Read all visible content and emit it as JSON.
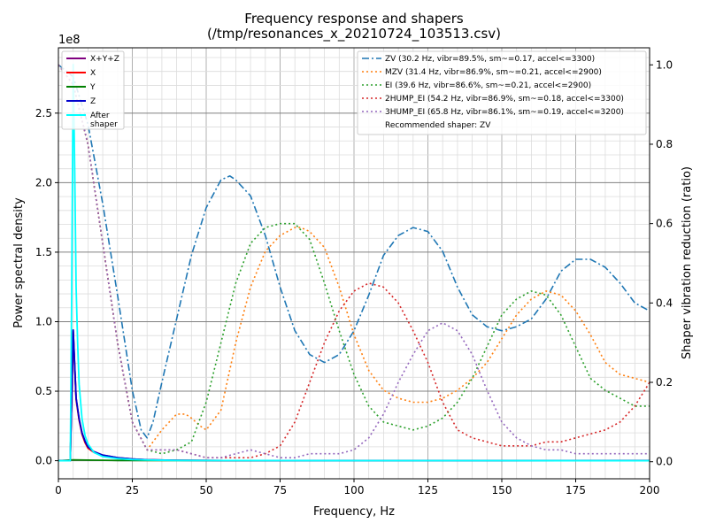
{
  "chart_data": {
    "type": "line",
    "title": "Frequency response and shapers",
    "subtitle": "(/tmp/resonances_x_20210724_103513.csv)",
    "xlabel": "Frequency, Hz",
    "ylabel_left": "Power spectral density",
    "ylabel_right": "Shaper vibration reduction (ratio)",
    "left_scale_label": "1e8",
    "xlim": [
      0,
      200
    ],
    "ylim_left": [
      -0.13,
      2.97
    ],
    "ylim_right": [
      -0.043,
      1.043
    ],
    "x_ticks": [
      0,
      25,
      50,
      75,
      100,
      125,
      150,
      175,
      200
    ],
    "x_tick_labels": [
      "0",
      "25",
      "50",
      "75",
      "100",
      "125",
      "150",
      "175",
      "200"
    ],
    "y_left_ticks": [
      0,
      0.5,
      1.0,
      1.5,
      2.0,
      2.5
    ],
    "y_left_tick_labels": [
      "0.0",
      "0.5",
      "1.0",
      "1.5",
      "2.0",
      "2.5"
    ],
    "y_right_ticks": [
      0,
      0.2,
      0.4,
      0.6,
      0.8,
      1.0
    ],
    "y_right_tick_labels": [
      "0.0",
      "0.2",
      "0.4",
      "0.6",
      "0.8",
      "1.0"
    ],
    "grid": "major and minor",
    "legend_left_position": "top-left",
    "legend_right_position": "top-right",
    "psd_series": [
      {
        "name": "X+Y+Z",
        "color": "#800080",
        "x": [
          0,
          4,
          5,
          6,
          7,
          8,
          9,
          10,
          12,
          15,
          20,
          25,
          30,
          40,
          60,
          100,
          150,
          200
        ],
        "y": [
          0,
          0,
          0.94,
          0.45,
          0.3,
          0.2,
          0.14,
          0.1,
          0.065,
          0.04,
          0.022,
          0.012,
          0.007,
          0.003,
          0.001,
          0.0005,
          0.0003,
          0.0002
        ]
      },
      {
        "name": "X",
        "color": "#ff0000",
        "x": [
          0,
          4,
          5,
          6,
          7,
          8,
          9,
          10,
          12,
          15,
          20,
          25,
          30,
          40,
          60,
          100,
          150,
          200
        ],
        "y": [
          0,
          0,
          0.93,
          0.44,
          0.29,
          0.19,
          0.13,
          0.09,
          0.06,
          0.035,
          0.02,
          0.011,
          0.006,
          0.003,
          0.001,
          0.0005,
          0.0003,
          0.0002
        ]
      },
      {
        "name": "Y",
        "color": "#008000",
        "x": [
          0,
          5,
          10,
          20,
          50,
          100,
          150,
          200
        ],
        "y": [
          0,
          0.006,
          0.004,
          0.002,
          0.001,
          0.0005,
          0.0003,
          0.0002
        ]
      },
      {
        "name": "Z",
        "color": "#0000cd",
        "x": [
          0,
          4,
          5,
          6,
          7,
          8,
          9,
          10,
          12,
          15,
          20,
          25,
          30,
          40,
          60,
          100,
          150,
          200
        ],
        "y": [
          0,
          0,
          0.94,
          0.45,
          0.3,
          0.2,
          0.14,
          0.1,
          0.065,
          0.04,
          0.022,
          0.012,
          0.007,
          0.003,
          0.001,
          0.0005,
          0.0003,
          0.0002
        ]
      },
      {
        "name": "After\nshaper",
        "color": "#00ffff",
        "x": [
          0,
          4,
          4.5,
          5,
          5.5,
          6,
          6.5,
          7,
          8,
          9,
          10,
          12,
          15,
          20,
          25,
          30,
          40,
          60,
          100,
          150,
          200
        ],
        "y": [
          0,
          0,
          1.2,
          2.85,
          2.1,
          1.25,
          0.85,
          0.55,
          0.3,
          0.18,
          0.12,
          0.06,
          0.03,
          0.015,
          0.008,
          0.005,
          0.002,
          0.001,
          0.0004,
          0.0002,
          0.0001
        ]
      }
    ],
    "shaper_series": [
      {
        "name": "ZV (30.2 Hz, vibr=89.5%, sm~=0.17, accel<=3300)",
        "color": "#1f77b4",
        "dash": "8,3,2,3",
        "x": [
          0,
          5,
          10,
          15,
          20,
          25,
          28,
          30,
          32,
          35,
          40,
          45,
          50,
          55,
          58,
          60,
          65,
          70,
          75,
          80,
          85,
          90,
          95,
          100,
          105,
          110,
          115,
          120,
          125,
          130,
          135,
          140,
          145,
          150,
          155,
          160,
          165,
          170,
          175,
          180,
          185,
          190,
          195,
          200
        ],
        "y": [
          1.0,
          0.97,
          0.85,
          0.65,
          0.42,
          0.18,
          0.08,
          0.06,
          0.1,
          0.2,
          0.36,
          0.52,
          0.64,
          0.71,
          0.72,
          0.71,
          0.67,
          0.57,
          0.44,
          0.33,
          0.27,
          0.25,
          0.27,
          0.33,
          0.42,
          0.52,
          0.57,
          0.59,
          0.58,
          0.53,
          0.44,
          0.37,
          0.34,
          0.33,
          0.34,
          0.36,
          0.41,
          0.48,
          0.51,
          0.51,
          0.49,
          0.45,
          0.4,
          0.38
        ]
      },
      {
        "name": "MZV (31.4 Hz, vibr=86.9%, sm~=0.21, accel<=2900)",
        "color": "#ff7f0e",
        "dash": "2,3",
        "x": [
          0,
          5,
          10,
          15,
          20,
          25,
          30,
          35,
          40,
          43,
          45,
          48,
          50,
          55,
          60,
          65,
          70,
          75,
          80,
          82,
          85,
          90,
          95,
          100,
          105,
          110,
          115,
          120,
          125,
          130,
          135,
          140,
          145,
          150,
          155,
          160,
          165,
          170,
          175,
          180,
          185,
          190,
          195,
          200
        ],
        "y": [
          1.0,
          0.95,
          0.8,
          0.55,
          0.3,
          0.1,
          0.03,
          0.08,
          0.12,
          0.12,
          0.11,
          0.09,
          0.08,
          0.13,
          0.3,
          0.44,
          0.53,
          0.57,
          0.59,
          0.59,
          0.58,
          0.54,
          0.44,
          0.32,
          0.23,
          0.18,
          0.16,
          0.15,
          0.15,
          0.16,
          0.18,
          0.21,
          0.25,
          0.31,
          0.37,
          0.41,
          0.43,
          0.42,
          0.38,
          0.32,
          0.25,
          0.22,
          0.21,
          0.2
        ]
      },
      {
        "name": "EI (39.6 Hz, vibr=86.6%, sm~=0.21, accel<=2900)",
        "color": "#2ca02c",
        "dash": "2,3",
        "x": [
          0,
          5,
          10,
          15,
          20,
          25,
          30,
          35,
          40,
          45,
          50,
          55,
          60,
          65,
          70,
          75,
          80,
          85,
          90,
          95,
          100,
          105,
          110,
          115,
          120,
          125,
          130,
          135,
          140,
          145,
          150,
          155,
          160,
          165,
          170,
          175,
          180,
          185,
          190,
          195,
          200
        ],
        "y": [
          1.0,
          0.95,
          0.8,
          0.55,
          0.3,
          0.1,
          0.03,
          0.02,
          0.03,
          0.05,
          0.15,
          0.3,
          0.45,
          0.55,
          0.59,
          0.6,
          0.6,
          0.56,
          0.45,
          0.33,
          0.22,
          0.14,
          0.1,
          0.09,
          0.08,
          0.09,
          0.11,
          0.15,
          0.21,
          0.29,
          0.37,
          0.41,
          0.43,
          0.42,
          0.37,
          0.29,
          0.21,
          0.18,
          0.16,
          0.14,
          0.14
        ]
      },
      {
        "name": "2HUMP_EI (54.2 Hz, vibr=86.9%, sm~=0.18, accel<=3300)",
        "color": "#d62728",
        "dash": "2,3",
        "x": [
          0,
          5,
          10,
          15,
          20,
          25,
          30,
          35,
          40,
          45,
          50,
          55,
          60,
          65,
          70,
          75,
          80,
          85,
          90,
          95,
          100,
          105,
          110,
          115,
          120,
          125,
          130,
          135,
          140,
          145,
          150,
          155,
          160,
          165,
          170,
          175,
          180,
          185,
          190,
          195,
          200
        ],
        "y": [
          1.0,
          0.95,
          0.8,
          0.55,
          0.3,
          0.1,
          0.03,
          0.03,
          0.03,
          0.02,
          0.01,
          0.01,
          0.01,
          0.01,
          0.02,
          0.04,
          0.1,
          0.2,
          0.3,
          0.38,
          0.43,
          0.45,
          0.44,
          0.4,
          0.33,
          0.25,
          0.15,
          0.08,
          0.06,
          0.05,
          0.04,
          0.04,
          0.04,
          0.05,
          0.05,
          0.06,
          0.07,
          0.08,
          0.1,
          0.14,
          0.2
        ]
      },
      {
        "name": "3HUMP_EI (65.8 Hz, vibr=86.1%, sm~=0.19, accel<=3200)",
        "color": "#9467bd",
        "dash": "2,3",
        "x": [
          0,
          5,
          10,
          15,
          20,
          25,
          30,
          35,
          40,
          45,
          50,
          55,
          60,
          65,
          70,
          75,
          80,
          85,
          90,
          95,
          100,
          105,
          110,
          115,
          120,
          125,
          130,
          135,
          140,
          145,
          150,
          155,
          160,
          165,
          170,
          175,
          180,
          185,
          190,
          195,
          200
        ],
        "y": [
          1.0,
          0.95,
          0.8,
          0.55,
          0.3,
          0.1,
          0.03,
          0.03,
          0.03,
          0.02,
          0.01,
          0.01,
          0.02,
          0.03,
          0.02,
          0.01,
          0.01,
          0.02,
          0.02,
          0.02,
          0.03,
          0.06,
          0.12,
          0.2,
          0.27,
          0.33,
          0.35,
          0.33,
          0.27,
          0.18,
          0.1,
          0.06,
          0.04,
          0.03,
          0.03,
          0.02,
          0.02,
          0.02,
          0.02,
          0.02,
          0.02
        ]
      }
    ],
    "recommendation": "Recommended shaper: ZV"
  }
}
